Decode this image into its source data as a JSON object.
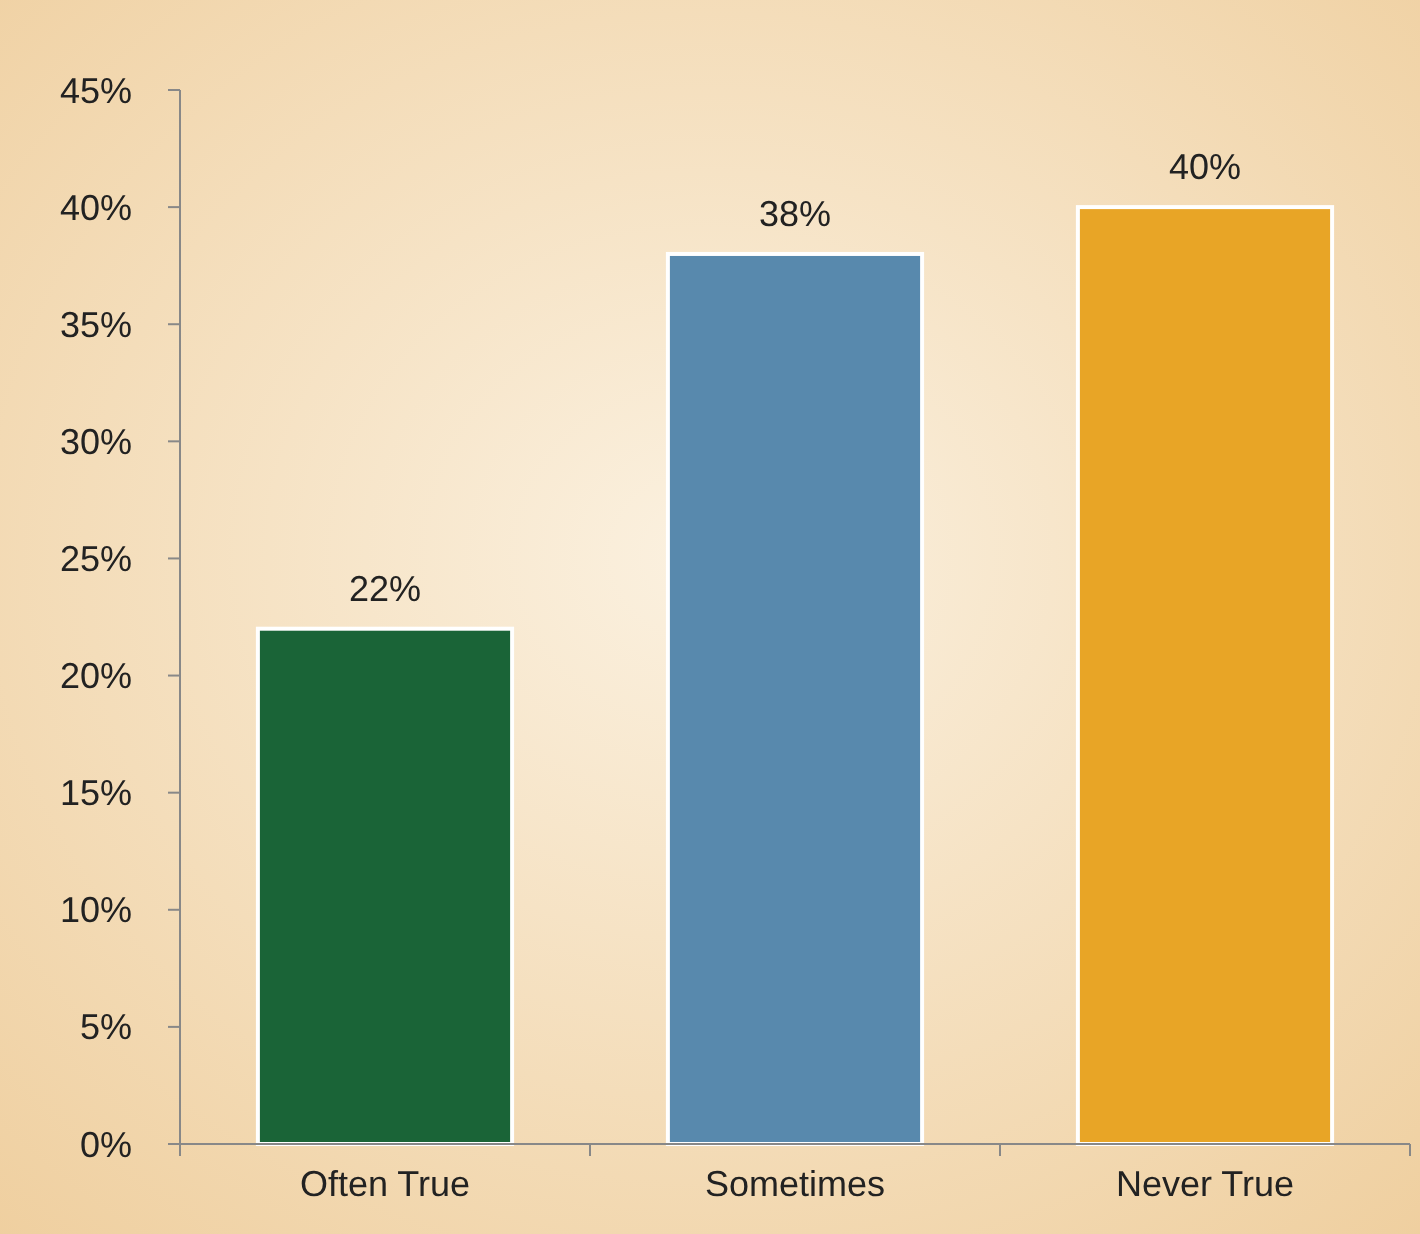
{
  "chart_data": {
    "type": "bar",
    "categories": [
      "Often True",
      "Sometimes",
      "Never True"
    ],
    "values": [
      22,
      38,
      40
    ],
    "colors": [
      "#1a6437",
      "#5889ad",
      "#e8a526"
    ],
    "value_labels": [
      "22%",
      "38%",
      "40%"
    ],
    "ylim": [
      0,
      45
    ],
    "yticks": [
      {
        "value": 0,
        "label": "0%"
      },
      {
        "value": 5,
        "label": "5%"
      },
      {
        "value": 10,
        "label": "10%"
      },
      {
        "value": 15,
        "label": "15%"
      },
      {
        "value": 20,
        "label": "20%"
      },
      {
        "value": 25,
        "label": "25%"
      },
      {
        "value": 30,
        "label": "30%"
      },
      {
        "value": 35,
        "label": "35%"
      },
      {
        "value": 40,
        "label": "40%"
      },
      {
        "value": 45,
        "label": "45%"
      }
    ],
    "grid": false
  }
}
